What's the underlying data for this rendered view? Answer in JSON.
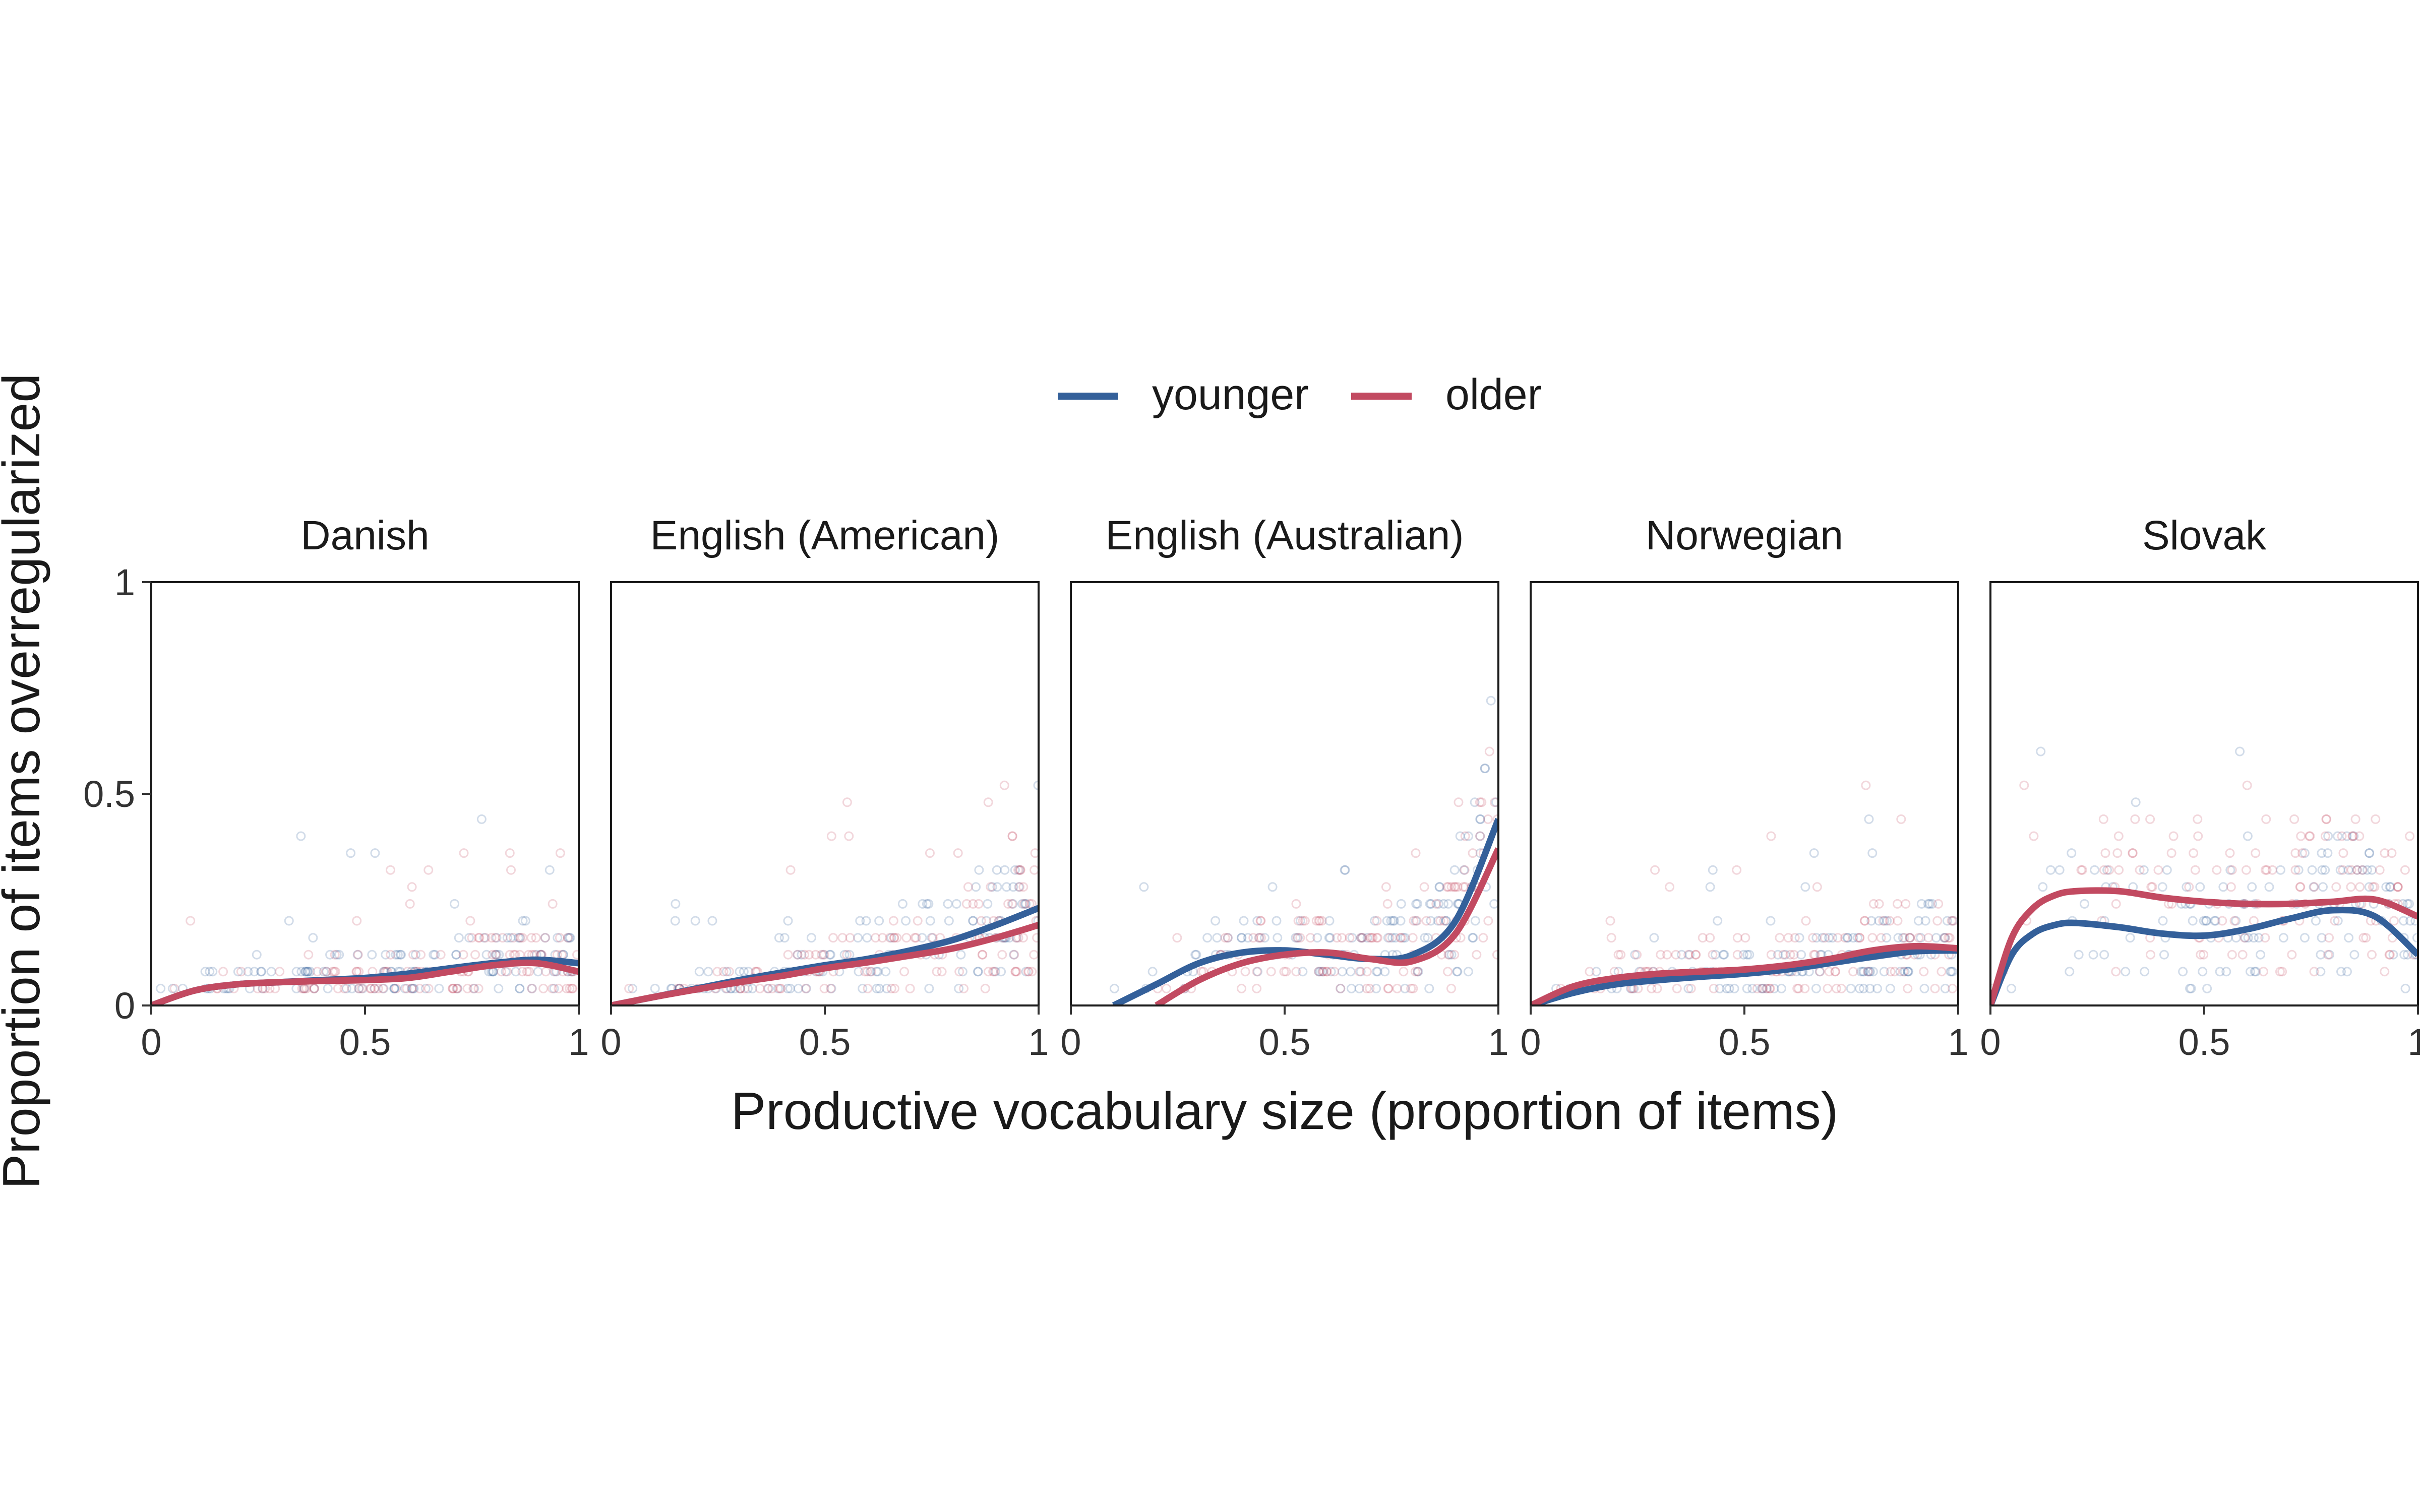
{
  "chart_data": {
    "type": "scatter",
    "x_label": "Productive vocabulary size (proportion of items)",
    "y_label": "Proportion of items overregularized",
    "xlim": [
      0,
      1
    ],
    "ylim": [
      0,
      1
    ],
    "x_ticks": [
      "0",
      "0.5",
      "1"
    ],
    "y_ticks": [
      "0",
      "0.5",
      "1"
    ],
    "x_tick_values": [
      0,
      0.5,
      1
    ],
    "y_tick_values": [
      0,
      0.5,
      1
    ],
    "legend_position": "top",
    "grid": false,
    "legend": [
      {
        "name": "younger",
        "color": "#34609A"
      },
      {
        "name": "older",
        "color": "#C24A61"
      }
    ],
    "panels": [
      {
        "label": "Danish",
        "curves": {
          "younger": {
            "x": [
              0,
              0.1,
              0.2,
              0.3,
              0.4,
              0.5,
              0.6,
              0.7,
              0.8,
              0.9,
              1.0
            ],
            "y": [
              0,
              0.035,
              0.05,
              0.055,
              0.06,
              0.065,
              0.075,
              0.088,
              0.1,
              0.108,
              0.1
            ]
          },
          "older": {
            "x": [
              0,
              0.1,
              0.2,
              0.3,
              0.4,
              0.5,
              0.6,
              0.7,
              0.8,
              0.9,
              1.0
            ],
            "y": [
              0,
              0.035,
              0.05,
              0.055,
              0.058,
              0.06,
              0.065,
              0.08,
              0.095,
              0.1,
              0.08
            ]
          }
        }
      },
      {
        "label": "English (American)",
        "curves": {
          "younger": {
            "x": [
              0,
              0.1,
              0.2,
              0.3,
              0.4,
              0.5,
              0.6,
              0.7,
              0.8,
              0.9,
              1.0
            ],
            "y": [
              0,
              0.02,
              0.04,
              0.06,
              0.078,
              0.095,
              0.11,
              0.13,
              0.155,
              0.19,
              0.23
            ]
          },
          "older": {
            "x": [
              0,
              0.1,
              0.2,
              0.3,
              0.4,
              0.5,
              0.6,
              0.7,
              0.8,
              0.9,
              1.0
            ],
            "y": [
              0,
              0.02,
              0.038,
              0.055,
              0.07,
              0.088,
              0.102,
              0.118,
              0.135,
              0.16,
              0.19
            ]
          }
        }
      },
      {
        "label": "English (Australian)",
        "curves": {
          "younger": {
            "x": [
              0.1,
              0.2,
              0.3,
              0.4,
              0.5,
              0.6,
              0.7,
              0.8,
              0.9,
              1.0
            ],
            "y": [
              0,
              0.05,
              0.1,
              0.125,
              0.13,
              0.12,
              0.11,
              0.12,
              0.2,
              0.44
            ]
          },
          "older": {
            "x": [
              0.2,
              0.3,
              0.4,
              0.5,
              0.6,
              0.7,
              0.8,
              0.9,
              1.0
            ],
            "y": [
              0,
              0.06,
              0.1,
              0.12,
              0.125,
              0.11,
              0.105,
              0.17,
              0.37
            ]
          }
        }
      },
      {
        "label": "Norwegian",
        "curves": {
          "younger": {
            "x": [
              0,
              0.1,
              0.2,
              0.3,
              0.4,
              0.5,
              0.6,
              0.7,
              0.8,
              0.9,
              1.0
            ],
            "y": [
              0,
              0.03,
              0.05,
              0.06,
              0.068,
              0.075,
              0.085,
              0.1,
              0.115,
              0.128,
              0.13
            ]
          },
          "older": {
            "x": [
              0,
              0.1,
              0.2,
              0.3,
              0.4,
              0.5,
              0.6,
              0.7,
              0.8,
              0.9,
              1.0
            ],
            "y": [
              0,
              0.045,
              0.065,
              0.075,
              0.08,
              0.085,
              0.095,
              0.11,
              0.13,
              0.14,
              0.135
            ]
          }
        }
      },
      {
        "label": "Slovak",
        "curves": {
          "younger": {
            "x": [
              0,
              0.05,
              0.1,
              0.15,
              0.2,
              0.3,
              0.4,
              0.5,
              0.6,
              0.7,
              0.8,
              0.9,
              1.0
            ],
            "y": [
              0,
              0.12,
              0.17,
              0.19,
              0.195,
              0.185,
              0.17,
              0.165,
              0.18,
              0.205,
              0.225,
              0.21,
              0.12
            ]
          },
          "older": {
            "x": [
              0,
              0.05,
              0.1,
              0.15,
              0.2,
              0.3,
              0.4,
              0.5,
              0.6,
              0.7,
              0.8,
              0.9,
              1.0
            ],
            "y": [
              0,
              0.16,
              0.23,
              0.26,
              0.27,
              0.27,
              0.255,
              0.245,
              0.24,
              0.24,
              0.245,
              0.25,
              0.21
            ]
          }
        }
      }
    ]
  }
}
